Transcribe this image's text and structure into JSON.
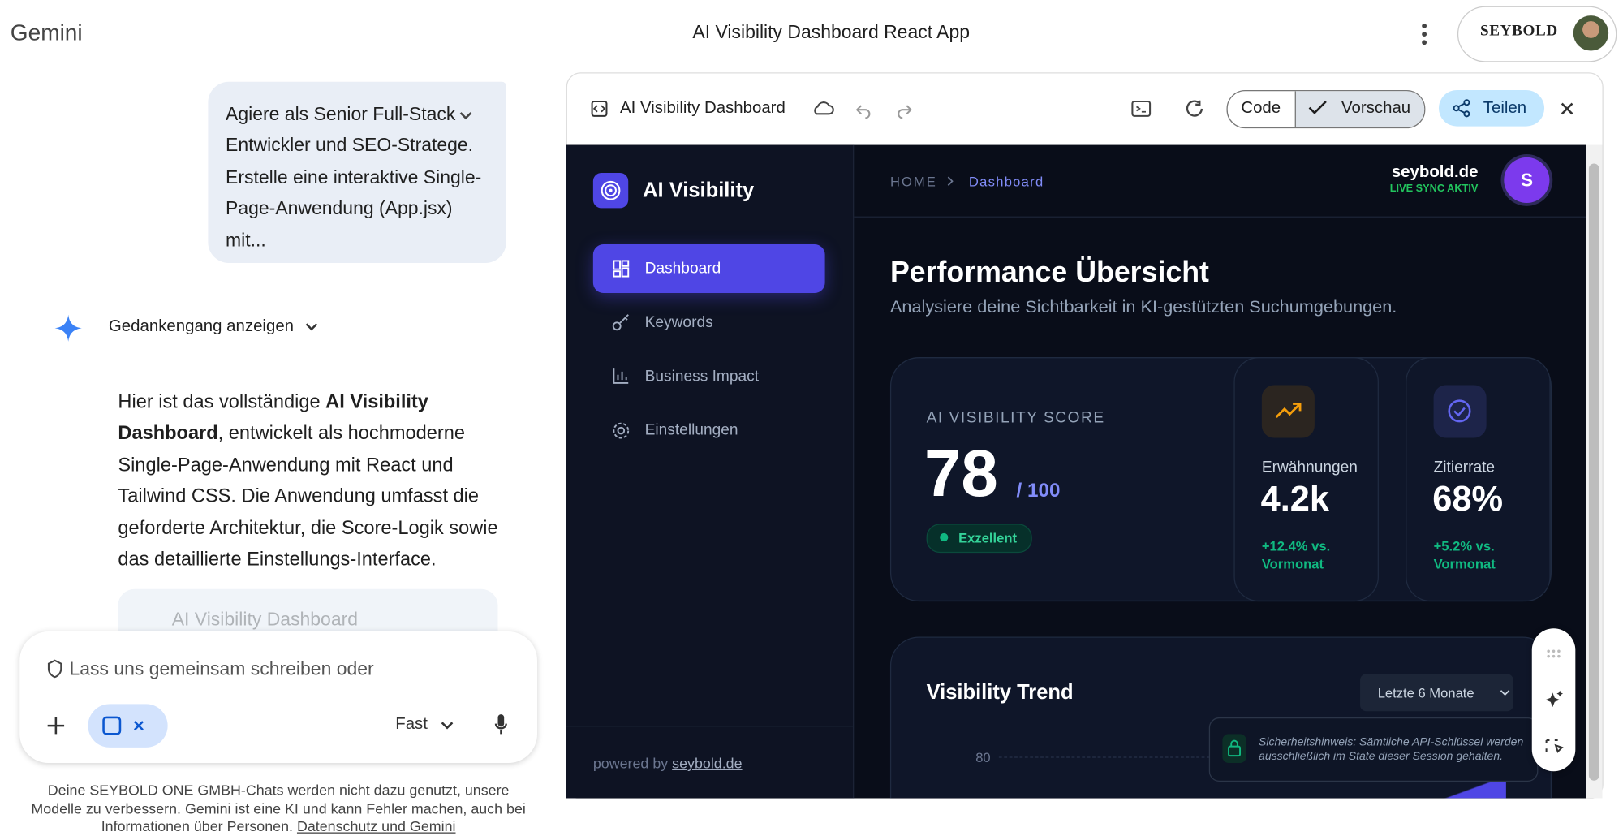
{
  "header": {
    "app_name": "Gemini",
    "title": "AI Visibility Dashboard React App",
    "account": "SEYBOLD"
  },
  "chat": {
    "user_prompt": "Agiere als Senior Full-Stack Entwickler und SEO-Stratege. Erstelle eine interaktive Single-Page-Anwendung (App.jsx) mit...",
    "thinking_toggle": "Gedankengang anzeigen",
    "response": {
      "intro": "Hier ist das vollständige ",
      "bold": "AI Visibility Dashboard",
      "rest": ", entwickelt als hochmoderne Single-Page-Anwendung mit React und Tailwind CSS. Die Anwendung umfasst die geforderte Architektur, die Score-Logik sowie das detaillierte Einstellungs-Interface."
    },
    "artifact_card": "AI Visibility Dashboard",
    "input_placeholder": "Lass uns gemeinsam schreiben oder",
    "mode": "Fast",
    "disclaimer": "Deine SEYBOLD ONE GMBH-Chats werden nicht dazu genutzt, unsere Modelle zu verbessern. Gemini ist eine KI und kann Fehler machen, auch bei Informationen über Personen. ",
    "disclaimer_link": "Datenschutz und Gemini"
  },
  "canvas": {
    "title": "AI Visibility Dashboard",
    "tab_code": "Code",
    "tab_preview": "Vorschau",
    "share": "Teilen"
  },
  "preview": {
    "brand": "AI Visibility",
    "nav": [
      "Dashboard",
      "Keywords",
      "Business Impact",
      "Einstellungen"
    ],
    "footer_text": "powered by ",
    "footer_link": "seybold.de",
    "breadcrumb": [
      "HOME",
      "Dashboard"
    ],
    "site": "seybold.de",
    "sync_status": "LIVE SYNC AKTIV",
    "avatar": "S",
    "heading": "Performance Übersicht",
    "subheading": "Analysiere deine Sichtbarkeit in KI-gestützten Suchumgebungen.",
    "score_card": {
      "label": "AI VISIBILITY SCORE",
      "value": "78",
      "max": "/ 100",
      "badge": "Exzellent"
    },
    "stats": [
      {
        "label": "Erwähnungen",
        "value": "4.2k",
        "change": "+12.4% vs. Vormonat"
      },
      {
        "label": "Zitierrate",
        "value": "68%",
        "change": "+5.2% vs. Vormonat"
      }
    ],
    "trend": {
      "title": "Visibility Trend",
      "range": "Letzte 6 Monate",
      "tick": "80"
    },
    "security_note": "Sicherheitshinweis: Sämtliche API-Schlüssel werden ausschließlich im State dieser Session gehalten."
  }
}
